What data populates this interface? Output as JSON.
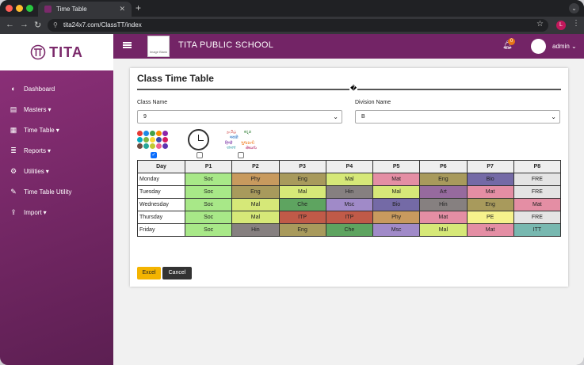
{
  "browser": {
    "tab_title": "Time Table",
    "url": "tita24x7.com/ClassTT/index",
    "profile_initial": "L"
  },
  "brand": {
    "logo_text": "TITA"
  },
  "header": {
    "school_name": "TITA PUBLIC SCHOOL",
    "notification_count": "0",
    "user_name": "admin",
    "school_logo_text": "Image Blank"
  },
  "sidebar": {
    "items": [
      {
        "label": "Dashboard",
        "icon": "dashboard-icon",
        "glyph": "◐"
      },
      {
        "label": "Masters",
        "icon": "masters-icon",
        "glyph": "▤",
        "caret": "▾"
      },
      {
        "label": "Time Table",
        "icon": "calendar-icon",
        "glyph": "▦",
        "caret": "▾"
      },
      {
        "label": "Reports",
        "icon": "reports-icon",
        "glyph": "≣",
        "caret": "▾"
      },
      {
        "label": "Utilities",
        "icon": "gear-icon",
        "glyph": "⚙",
        "caret": "▾"
      },
      {
        "label": "Time Table Utility",
        "icon": "wrench-icon",
        "glyph": "✎"
      },
      {
        "label": "Import",
        "icon": "import-icon",
        "glyph": "⇪",
        "caret": "▾"
      }
    ]
  },
  "main": {
    "title": "Class Time Table",
    "divider_glyph": "�",
    "class_label": "Class Name",
    "class_value": "9",
    "division_label": "Division Name",
    "division_value": "B",
    "checkboxes": [
      true,
      false,
      false
    ],
    "lang_words": [
      "தமிழ்",
      "ಕನ್ನಡ",
      "मराठी",
      "हिन्दी",
      "ગુજરાતી",
      "বাংলা",
      "తెలుగు"
    ],
    "columns": [
      "Day",
      "P1",
      "P2",
      "P3",
      "P4",
      "P5",
      "P6",
      "P7",
      "P8"
    ],
    "rows": [
      {
        "day": "Monday",
        "cells": [
          "Soc",
          "Phy",
          "Eng",
          "Mal",
          "Mat",
          "Eng",
          "Bio",
          "FRE"
        ]
      },
      {
        "day": "Tuesday",
        "cells": [
          "Soc",
          "Eng",
          "Mal",
          "Hin",
          "Mal",
          "Art",
          "Mat",
          "FRE"
        ]
      },
      {
        "day": "Wednesday",
        "cells": [
          "Soc",
          "Mal",
          "Che",
          "Msc",
          "Bio",
          "Hin",
          "Eng",
          "Mat"
        ]
      },
      {
        "day": "Thursday",
        "cells": [
          "Soc",
          "Mal",
          "ITP",
          "ITP",
          "Phy",
          "Mat",
          "PE",
          "FRE"
        ]
      },
      {
        "day": "Friday",
        "cells": [
          "Soc",
          "Hin",
          "Eng",
          "Che",
          "Msc",
          "Mal",
          "Mat",
          "ITT"
        ]
      }
    ],
    "subject_colors": {
      "Soc": "#a8e888",
      "Phy": "#c89a5e",
      "Eng": "#a89a5c",
      "Mal": "#d6e878",
      "Mat": "#e48ea4",
      "Bio": "#746aa6",
      "FRE": "#e4e4e4",
      "Hin": "#868080",
      "Art": "#966a9e",
      "Che": "#5ea460",
      "Msc": "#a08ac8",
      "ITP": "#c05a48",
      "PE": "#f6f28c",
      "ITT": "#78b8b0"
    },
    "excel_label": "Excel",
    "cancel_label": "Cancel",
    "excel_color": "#f4b400",
    "cancel_color": "#333333"
  }
}
